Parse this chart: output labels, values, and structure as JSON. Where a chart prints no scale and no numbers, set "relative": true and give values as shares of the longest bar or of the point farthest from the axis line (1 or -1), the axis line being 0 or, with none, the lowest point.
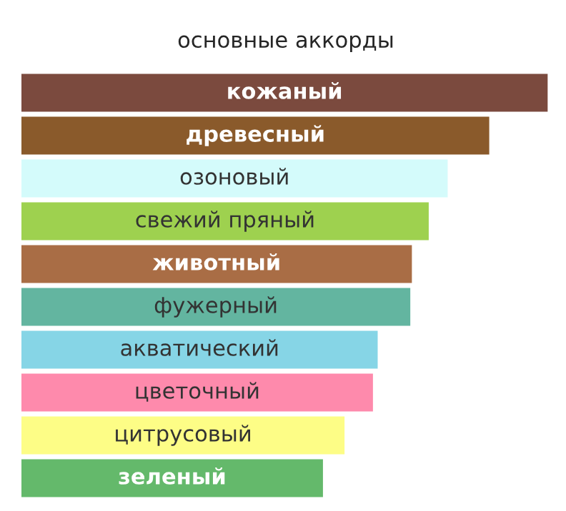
{
  "chart_data": {
    "type": "bar",
    "orientation": "horizontal",
    "relative": true,
    "title": "основные аккорды",
    "categories": [
      "кожаный",
      "древесный",
      "озоновый",
      "свежий пряный",
      "животный",
      "фужерный",
      "акватический",
      "цветочный",
      "цитрусовый",
      "зеленый"
    ],
    "values": [
      1,
      0.889,
      0.81,
      0.774,
      0.742,
      0.739,
      0.677,
      0.668,
      0.614,
      0.573
    ],
    "colors": [
      "#7b4a3e",
      "#8a5a2b",
      "#d4fbfb",
      "#9ed14f",
      "#a96d45",
      "#63b5a0",
      "#86d5e6",
      "#fe8aac",
      "#fdfd86",
      "#64b96b"
    ],
    "legend": false
  }
}
